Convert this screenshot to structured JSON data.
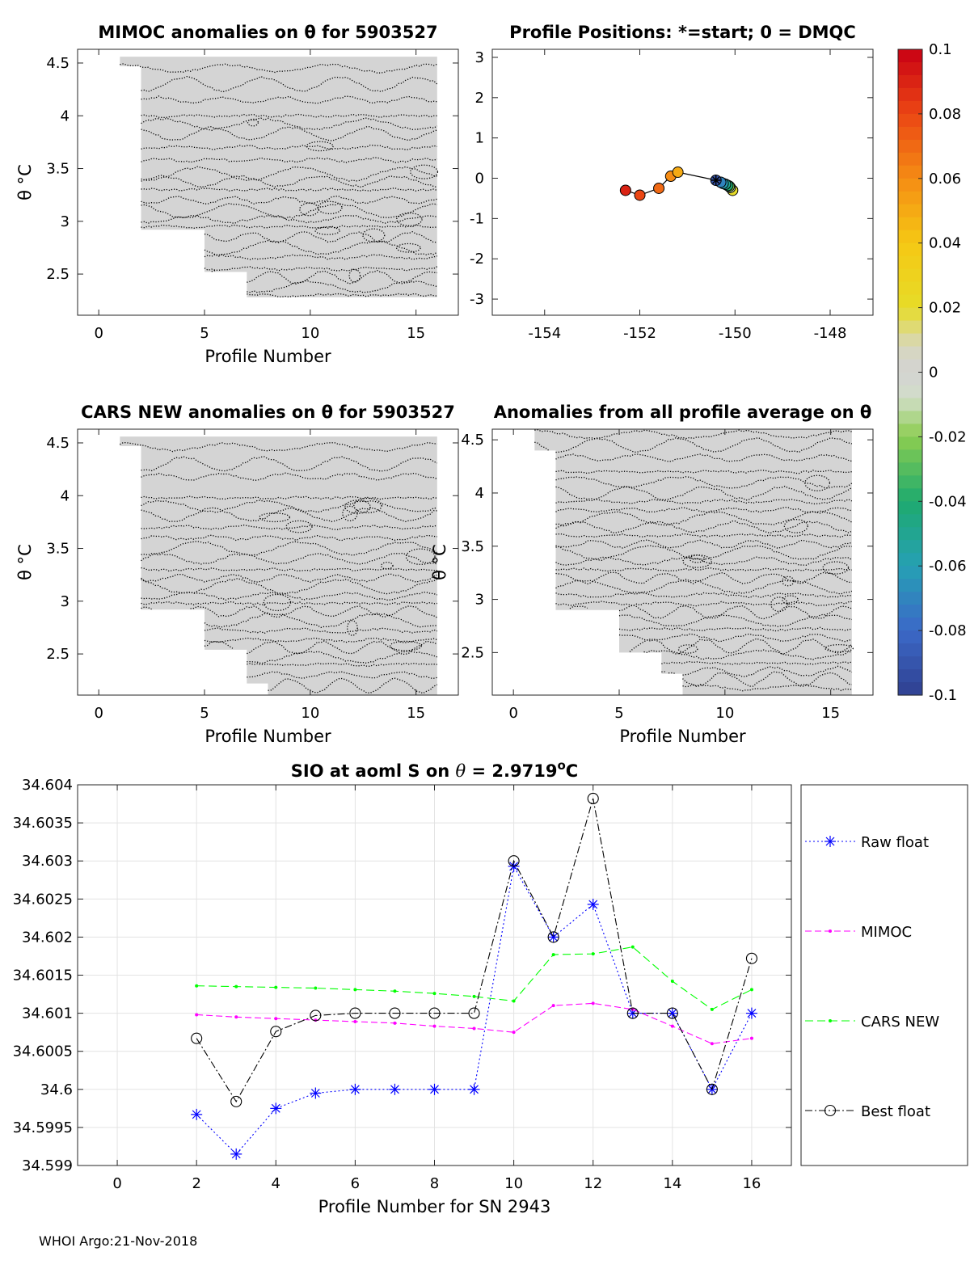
{
  "footer": "WHOI Argo:21-Nov-2018",
  "chart_data": [
    {
      "id": "mimoc",
      "type": "heatmap",
      "title": "MIMOC anomalies on θ  for 5903527",
      "xlabel": "Profile Number",
      "ylabel": "θ °C",
      "xlim": [
        -1,
        17
      ],
      "ylim": [
        2.11,
        4.63
      ],
      "xticks": [
        0,
        5,
        10,
        15
      ],
      "yticks": [
        2.5,
        3,
        3.5,
        4,
        4.5
      ],
      "contour_rows": [
        4.45,
        4.3,
        4.15,
        4.0,
        3.92,
        3.83,
        3.7,
        3.58,
        3.45,
        3.38,
        3.3,
        3.2,
        3.1,
        3.02,
        2.95,
        2.85,
        2.75,
        2.66,
        2.55,
        2.47,
        2.38,
        2.3
      ],
      "coverage": [
        [
          1,
          4.47,
          4.56
        ],
        [
          2,
          2.92,
          4.56
        ],
        [
          5,
          2.52,
          4.56
        ],
        [
          7,
          2.28,
          4.56
        ],
        [
          16,
          2.28,
          4.56
        ]
      ]
    },
    {
      "id": "positions",
      "type": "scatter",
      "title": "Profile Positions: *=start; 0 = DMQC",
      "xlabel": "",
      "ylabel": "",
      "xlim": [
        -155.1,
        -147.1
      ],
      "ylim": [
        -3.4,
        3.2
      ],
      "xticks": [
        -154,
        -152,
        -150,
        -148
      ],
      "yticks": [
        -3,
        -2,
        -1,
        0,
        1,
        2,
        3
      ],
      "lon": [
        -150.4,
        -150.3,
        -150.25,
        -150.2,
        -150.15,
        -150.12,
        -150.1,
        -150.05,
        -151.2,
        -151.35,
        -151.6,
        -152.0,
        -152.3
      ],
      "lat": [
        -0.05,
        -0.1,
        -0.13,
        -0.15,
        -0.18,
        -0.2,
        -0.23,
        -0.3,
        0.15,
        0.05,
        -0.25,
        -0.42,
        -0.3
      ],
      "anomaly": [
        -0.09,
        -0.07,
        -0.06,
        -0.05,
        -0.04,
        -0.02,
        -0.01,
        0.02,
        0.05,
        0.06,
        0.07,
        0.08,
        0.09
      ],
      "start_marker": "*"
    },
    {
      "id": "colorbar",
      "type": "heatmap",
      "title": "",
      "range": [
        -0.1,
        0.1
      ],
      "tick_labels": [
        "0.1",
        "0.08",
        "0.06",
        "0.04",
        "0.02",
        "0",
        "-0.02",
        "-0.04",
        "-0.06",
        "-0.08",
        "-0.1"
      ],
      "tick_values": [
        0.1,
        0.08,
        0.06,
        0.04,
        0.02,
        0,
        -0.02,
        -0.04,
        -0.06,
        -0.08,
        -0.1
      ]
    },
    {
      "id": "cars",
      "type": "heatmap",
      "title": "CARS NEW anomalies on θ for 5903527",
      "xlabel": "Profile Number",
      "ylabel": "θ °C",
      "xlim": [
        -1,
        17
      ],
      "ylim": [
        2.11,
        4.63
      ],
      "xticks": [
        0,
        5,
        10,
        15
      ],
      "yticks": [
        2.5,
        3,
        3.5,
        4,
        4.5
      ],
      "contour_rows": [
        4.46,
        4.3,
        4.18,
        3.98,
        3.9,
        3.82,
        3.7,
        3.6,
        3.5,
        3.4,
        3.3,
        3.22,
        3.14,
        3.05,
        2.98,
        2.9,
        2.82,
        2.72,
        2.63,
        2.56,
        2.47,
        2.4,
        2.3,
        2.2
      ],
      "coverage": [
        [
          1,
          4.47,
          4.56
        ],
        [
          2,
          2.92,
          4.56
        ],
        [
          5,
          2.54,
          4.56
        ],
        [
          7,
          2.22,
          4.56
        ],
        [
          8,
          2.11,
          4.56
        ],
        [
          16,
          2.11,
          4.56
        ]
      ]
    },
    {
      "id": "allavg",
      "type": "heatmap",
      "title": "Anomalies from all profile average on θ",
      "xlabel": "Profile Number",
      "ylabel": "θ °C",
      "xlim": [
        -1,
        17
      ],
      "ylim": [
        2.1,
        4.6
      ],
      "xticks": [
        0,
        5,
        10,
        15
      ],
      "yticks": [
        2.5,
        3,
        3.5,
        4,
        4.5
      ],
      "contour_rows": [
        4.55,
        4.45,
        4.33,
        4.2,
        4.1,
        4.0,
        3.92,
        3.84,
        3.76,
        3.68,
        3.6,
        3.52,
        3.44,
        3.36,
        3.28,
        3.2,
        3.12,
        3.04,
        2.96,
        2.88,
        2.8,
        2.72,
        2.64,
        2.56,
        2.48,
        2.4,
        2.32,
        2.25,
        2.17
      ],
      "coverage": [
        [
          1,
          4.4,
          4.6
        ],
        [
          2,
          2.9,
          4.6
        ],
        [
          5,
          2.5,
          4.6
        ],
        [
          7,
          2.3,
          4.6
        ],
        [
          8,
          2.1,
          4.6
        ],
        [
          16,
          2.1,
          4.6
        ]
      ]
    },
    {
      "id": "salinity",
      "type": "line",
      "title_prefix": "SIO at aoml S on ",
      "title_theta": "θ",
      "title_value": " = 2.9719",
      "title_sup": "o",
      "title_unit": "C",
      "xlabel": "Profile Number for SN 2943",
      "ylabel": "",
      "xlim": [
        -1,
        17
      ],
      "ylim": [
        34.599,
        34.604
      ],
      "xticks": [
        0,
        2,
        4,
        6,
        8,
        10,
        12,
        14,
        16
      ],
      "ytick_labels": [
        "34.604",
        "34.6035",
        "34.603",
        "34.6025",
        "34.602",
        "34.6015",
        "34.601",
        "34.6005",
        "34.6",
        "34.5995",
        "34.599"
      ],
      "ytick_values": [
        34.604,
        34.6035,
        34.603,
        34.6025,
        34.602,
        34.6015,
        34.601,
        34.6005,
        34.6,
        34.5995,
        34.599
      ],
      "x": [
        2,
        3,
        4,
        5,
        6,
        7,
        8,
        9,
        10,
        11,
        12,
        13,
        14,
        15,
        16
      ],
      "series": [
        {
          "name": "Raw float",
          "color": "#0000ff",
          "marker": "*",
          "dash": "2,3",
          "values": [
            34.59967,
            34.59915,
            34.59975,
            34.59995,
            34.6,
            34.6,
            34.6,
            34.6,
            34.60293,
            34.602,
            34.60243,
            34.601,
            34.601,
            34.6,
            34.601
          ]
        },
        {
          "name": "MIMOC",
          "color": "#ff00ff",
          "marker": ".",
          "dash": "8,4",
          "values": [
            34.60098,
            34.60095,
            34.60093,
            34.60091,
            34.60089,
            34.60087,
            34.60083,
            34.6008,
            34.60075,
            34.6011,
            34.60113,
            34.60105,
            34.60083,
            34.6006,
            34.60067
          ]
        },
        {
          "name": "CARS NEW",
          "color": "#00ff00",
          "marker": ".",
          "dash": "10,5",
          "values": [
            34.60136,
            34.60135,
            34.60134,
            34.60133,
            34.60131,
            34.60129,
            34.60126,
            34.60122,
            34.60116,
            34.60177,
            34.60178,
            34.60187,
            34.60142,
            34.60105,
            34.60131
          ]
        },
        {
          "name": "Best float",
          "color": "#000000",
          "marker": "o",
          "dash": "9,3,2,3",
          "values": [
            34.60067,
            34.59984,
            34.60076,
            34.60097,
            34.601,
            34.601,
            34.601,
            34.601,
            34.603,
            34.602,
            34.60382,
            34.601,
            34.601,
            34.6,
            34.60172
          ]
        }
      ]
    }
  ]
}
